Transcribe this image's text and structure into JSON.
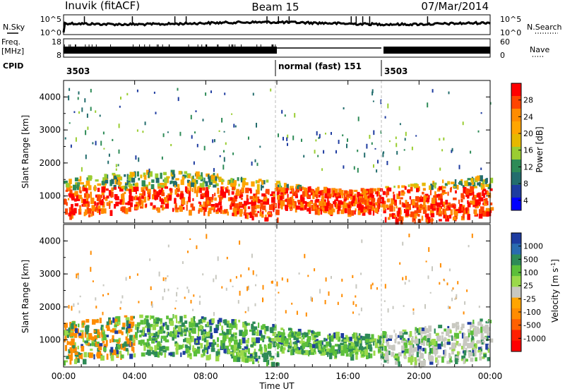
{
  "header": {
    "station": "Inuvik (fitACF)",
    "beam": "Beam 15",
    "date": "07/Mar/2014"
  },
  "noise_panel": {
    "left_label": "N.Sky",
    "right_label": "N.Search",
    "left_ticks": [
      "10^5",
      "10^0"
    ],
    "right_ticks": [
      "10^5",
      "10^0"
    ]
  },
  "freq_panel": {
    "left_label_line1": "Freq.",
    "left_label_line2": "[MHz]",
    "right_label": "Nave",
    "left_ticks": [
      "18",
      "8"
    ],
    "right_ticks": [
      "60",
      "0"
    ]
  },
  "cpid_panel": {
    "label": "CPID",
    "segments": [
      "3503",
      "normal (fast) 151",
      "3503"
    ],
    "segment_start_hours": [
      0,
      12,
      18
    ]
  },
  "x_axis": {
    "title": "Time UT",
    "tick_labels": [
      "00:00",
      "04:00",
      "08:00",
      "12:00",
      "16:00",
      "20:00",
      "00:00"
    ],
    "range_hours": [
      0,
      24
    ]
  },
  "chart_data": [
    {
      "type": "heatmap",
      "name": "power",
      "ylabel": "Slant Range [km]",
      "ylim": [
        180,
        4500
      ],
      "y_ticks": [
        "1000",
        "2000",
        "3000",
        "4000"
      ],
      "colorbar_label": "Power [dB]",
      "colorbar_ticks": [
        "28",
        "24",
        "20",
        "16",
        "12",
        "8",
        "4"
      ],
      "colorbar_colors": [
        "#ff0000",
        "#ff4500",
        "#ff8c00",
        "#ffa500",
        "#e6b800",
        "#9acd32",
        "#2e8b57",
        "#236d6d",
        "#1e3ca0",
        "#0000ff"
      ]
    },
    {
      "type": "heatmap",
      "name": "velocity",
      "ylabel": "Slant Range [km]",
      "ylim": [
        180,
        4500
      ],
      "y_ticks": [
        "1000",
        "2000",
        "3000",
        "4000"
      ],
      "colorbar_label": "Velocity [m s^-1]",
      "colorbar_ticks": [
        "1000",
        "500",
        "100",
        "25",
        "-25",
        "-100",
        "-500",
        "-1000"
      ],
      "colorbar_colors": [
        "#1e3ca0",
        "#2a6bb0",
        "#2e8b57",
        "#5cbf3a",
        "#9ad94a",
        "#c8c8c0",
        "#ffa500",
        "#ff8c00",
        "#ff6000",
        "#ff2000",
        "#ff0000"
      ]
    }
  ]
}
